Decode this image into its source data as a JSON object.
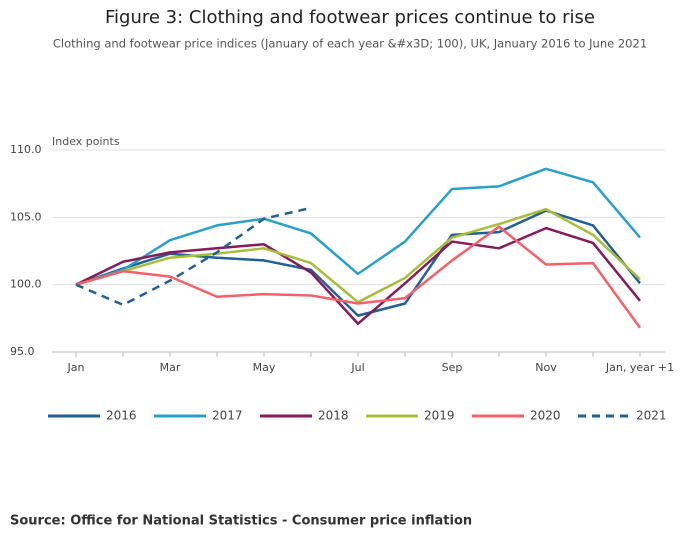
{
  "chart_data": {
    "type": "line",
    "title": "Figure 3: Clothing and footwear prices continue to rise",
    "subtitle": "Clothing and footwear price indices (January of each year &#x3D; 100), UK, January 2016 to June 2021",
    "y_label": "Index points",
    "source": "Source: Office for National Statistics - Consumer price inflation",
    "categories": [
      "Jan",
      null,
      "Mar",
      null,
      "May",
      null,
      "Jul",
      null,
      "Sep",
      null,
      "Nov",
      null,
      "Jan, year +1"
    ],
    "ylim": [
      95,
      110
    ],
    "yticks": [
      {
        "value": 95,
        "label": "95.0"
      },
      {
        "value": 100,
        "label": "100.0"
      },
      {
        "value": 105,
        "label": "105.0"
      },
      {
        "value": 110,
        "label": "110.0"
      }
    ],
    "grid": true,
    "legend": "bottom",
    "series": [
      {
        "name": "2016",
        "color": "#206095",
        "dashed": false,
        "values": [
          100,
          101.2,
          102.3,
          102.0,
          101.8,
          101.1,
          97.7,
          98.6,
          103.7,
          103.9,
          105.5,
          104.4,
          100.1
        ]
      },
      {
        "name": "2017",
        "color": "#27a0cc",
        "dashed": false,
        "values": [
          100,
          101.1,
          103.3,
          104.4,
          104.9,
          103.8,
          100.8,
          103.2,
          107.1,
          107.3,
          108.6,
          107.6,
          103.5
        ]
      },
      {
        "name": "2018",
        "color": "#871a5b",
        "dashed": false,
        "values": [
          100,
          101.7,
          102.4,
          102.7,
          103.0,
          100.9,
          97.1,
          100.1,
          103.2,
          102.7,
          104.2,
          103.1,
          98.8
        ]
      },
      {
        "name": "2019",
        "color": "#a8bd3a",
        "dashed": false,
        "values": [
          100,
          101.0,
          102.0,
          102.3,
          102.7,
          101.6,
          98.7,
          100.5,
          103.5,
          104.5,
          105.6,
          103.7,
          100.4
        ]
      },
      {
        "name": "2020",
        "color": "#f66068",
        "dashed": false,
        "values": [
          100,
          101.0,
          100.6,
          99.1,
          99.3,
          99.2,
          98.6,
          99.0,
          101.8,
          104.3,
          101.5,
          101.6,
          96.8
        ]
      },
      {
        "name": "2021",
        "color": "#206095",
        "dashed": true,
        "values": [
          100,
          98.5,
          100.3,
          102.4,
          104.9,
          105.7,
          null,
          null,
          null,
          null,
          null,
          null,
          null
        ]
      }
    ]
  }
}
